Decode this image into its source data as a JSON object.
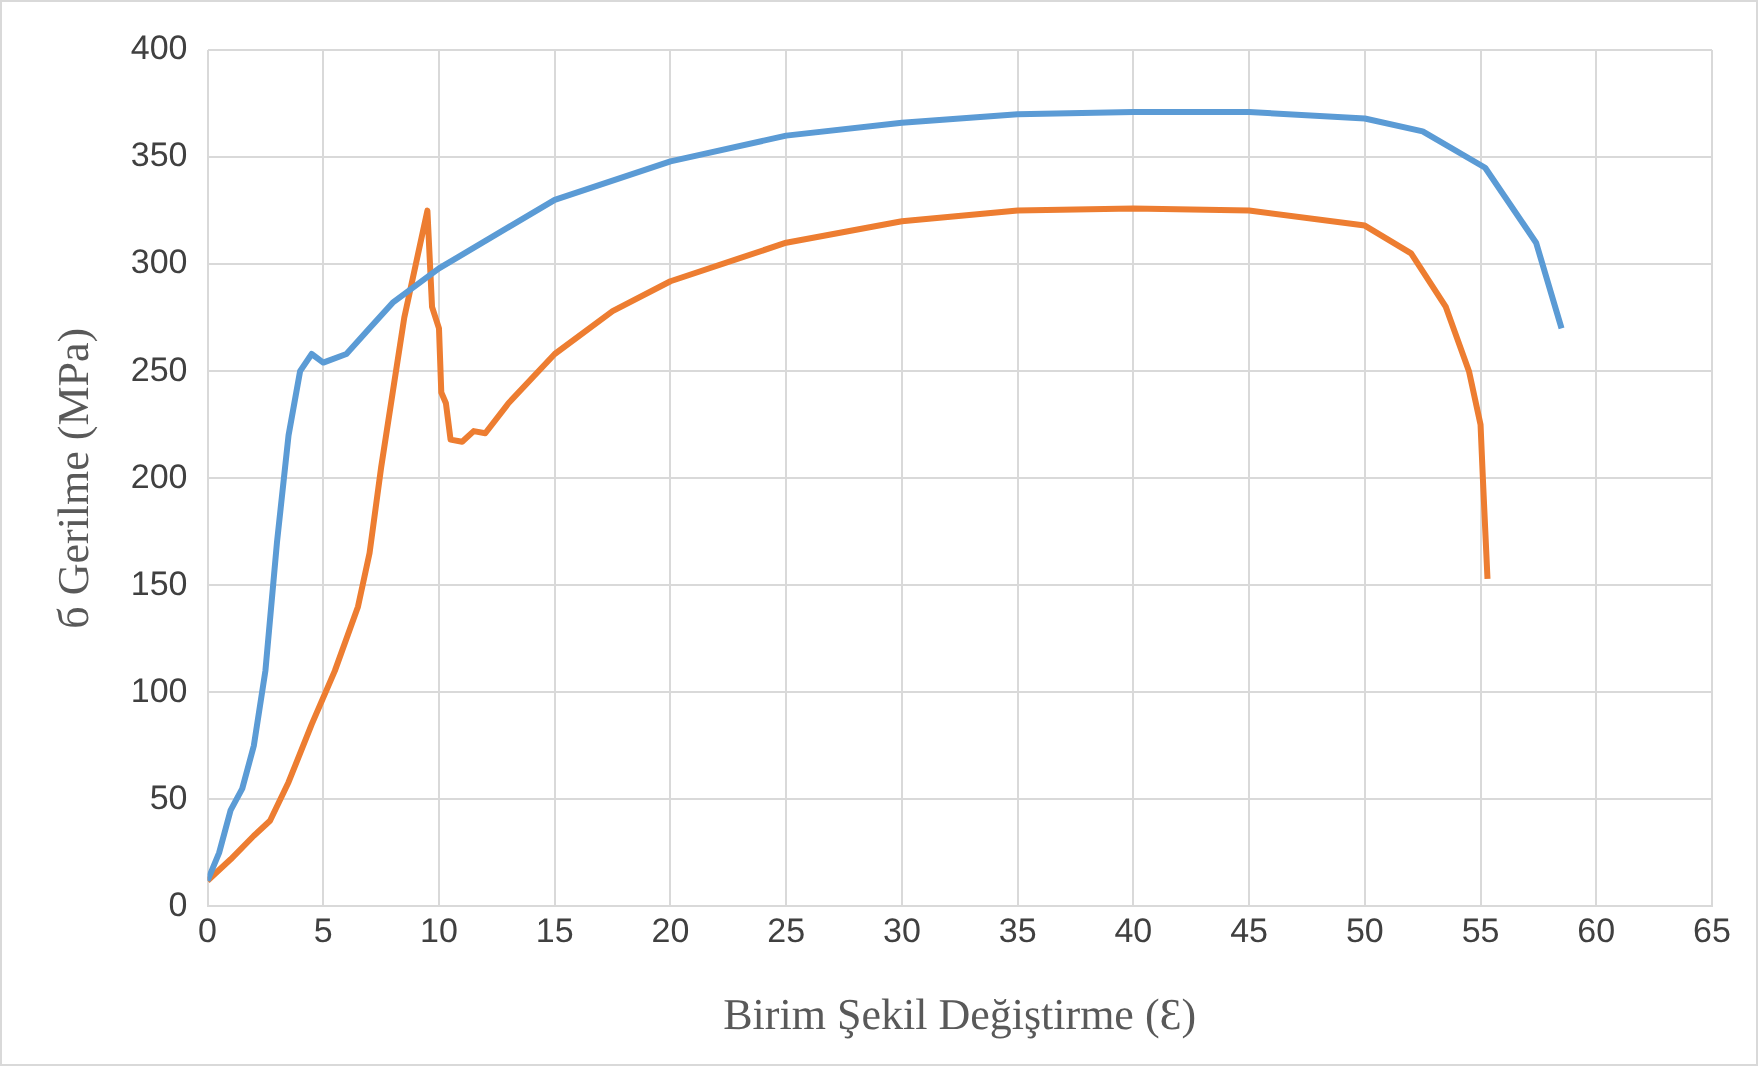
{
  "chart_data": {
    "type": "line",
    "xlabel": "Birim Şekil Değiştirme (Ɛ)",
    "ylabel": "б Gerilme (MPa)",
    "xlim": [
      0,
      65
    ],
    "xticks": [
      0,
      5,
      10,
      15,
      20,
      25,
      30,
      35,
      40,
      45,
      50,
      55,
      60,
      65
    ],
    "ylim": [
      0,
      400
    ],
    "yticks": [
      0,
      50,
      100,
      150,
      200,
      250,
      300,
      350,
      400
    ],
    "grid": true,
    "legend": false,
    "marker": "none",
    "line_style": "solid",
    "series": [
      {
        "color": "#5b9bd5",
        "x": [
          0,
          0.5,
          1,
          1.5,
          2,
          2.5,
          3,
          3.5,
          4,
          4.5,
          5,
          6,
          7,
          8,
          10,
          15,
          20,
          25,
          30,
          35,
          40,
          45,
          50,
          52.5,
          55.2,
          57.4,
          58.5
        ],
        "values": [
          12,
          25,
          45,
          55,
          75,
          110,
          170,
          220,
          250,
          258,
          254,
          258,
          270,
          282,
          298,
          330,
          348,
          360,
          366,
          370,
          371,
          371,
          368,
          362,
          345,
          310,
          270
        ]
      },
      {
        "color": "#ed7d31",
        "x": [
          0,
          1,
          2,
          2.7,
          3.5,
          4.5,
          5.5,
          6.5,
          7,
          7.5,
          8,
          8.5,
          9,
          9.5,
          9.7,
          10,
          10.1,
          10.3,
          10.5,
          11,
          11.5,
          12,
          13,
          15,
          17.5,
          20,
          25,
          30,
          35,
          40,
          45,
          50,
          52,
          53.5,
          54.5,
          55,
          55.1,
          55.3
        ],
        "values": [
          12,
          22,
          33,
          40,
          58,
          85,
          110,
          140,
          165,
          205,
          240,
          275,
          300,
          325,
          280,
          270,
          240,
          235,
          218,
          217,
          222,
          221,
          235,
          258,
          278,
          292,
          310,
          320,
          325,
          326,
          325,
          318,
          305,
          280,
          250,
          225,
          200,
          153
        ]
      }
    ]
  }
}
